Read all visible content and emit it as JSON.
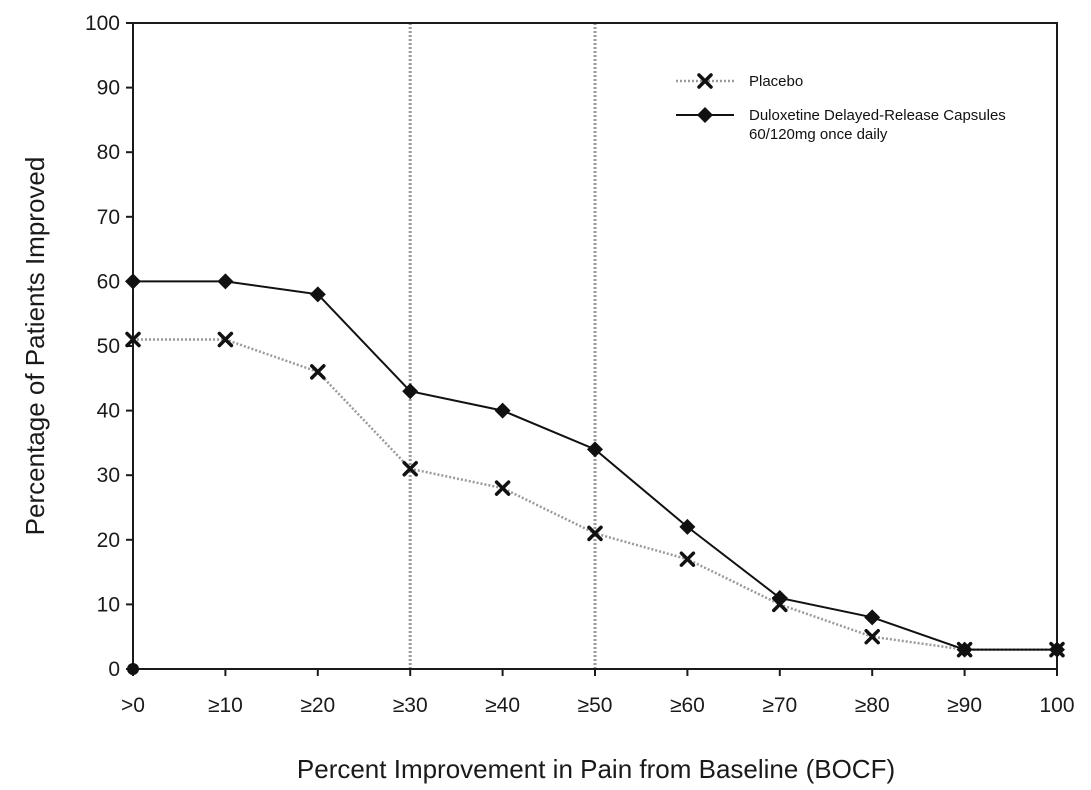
{
  "chart_data": {
    "type": "line",
    "title": "",
    "xlabel": "Percent Improvement in Pain from Baseline (BOCF)",
    "ylabel": "Percentage of Patients Improved",
    "categories": [
      ">0",
      "≥10",
      "≥20",
      "≥30",
      "≥40",
      "≥50",
      "≥60",
      "≥70",
      "≥80",
      "≥90",
      "100"
    ],
    "ylim": [
      0,
      100
    ],
    "yticks": [
      0,
      10,
      20,
      30,
      40,
      50,
      60,
      70,
      80,
      90,
      100
    ],
    "reference_lines_x": [
      "≥30",
      "≥50"
    ],
    "legend_position": "top-right",
    "grid": false,
    "series": [
      {
        "name": "Placebo",
        "marker": "x",
        "line_style": "dotted",
        "color": "#9a9a9a",
        "marker_color": "#111111",
        "values": [
          51,
          51,
          46,
          31,
          28,
          21,
          17,
          10,
          5,
          3,
          3
        ]
      },
      {
        "name": "Duloxetine Delayed-Release Capsules 60/120mg once daily",
        "name_lines": [
          "Duloxetine Delayed-Release Capsules",
          "60/120mg once daily"
        ],
        "marker": "diamond",
        "line_style": "solid",
        "color": "#111111",
        "marker_color": "#111111",
        "values": [
          60,
          60,
          58,
          43,
          40,
          34,
          22,
          11,
          8,
          3,
          3
        ]
      }
    ],
    "extra_points": [
      {
        "category": ">0",
        "value": 0,
        "marker": "circle"
      }
    ]
  }
}
